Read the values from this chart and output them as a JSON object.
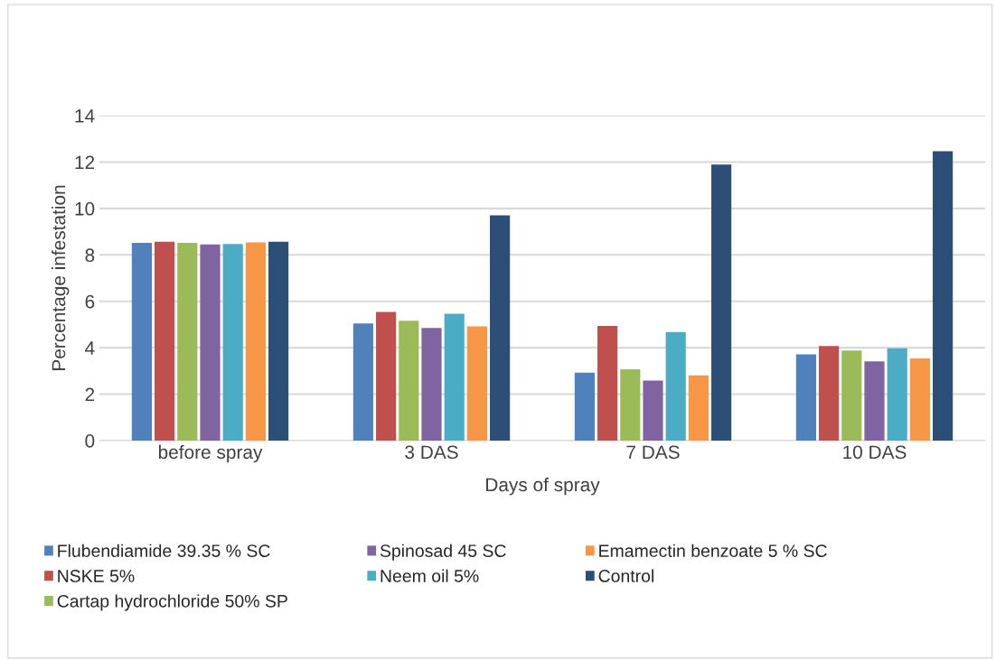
{
  "chart_data": {
    "type": "bar",
    "xlabel": "Days of spray",
    "ylabel": "Percentage infestation",
    "categories": [
      "before spray",
      "3 DAS",
      "7 DAS",
      "10 DAS"
    ],
    "series": [
      {
        "name": "Flubendiamide 39.35 % SC",
        "color": "#4f81bd",
        "values": [
          8.52,
          5.05,
          2.93,
          3.71
        ]
      },
      {
        "name": "NSKE 5%",
        "color": "#c0504d",
        "values": [
          8.57,
          5.54,
          4.94,
          4.07
        ]
      },
      {
        "name": "Cartap hydrochloride 50% SP",
        "color": "#9bbb59",
        "values": [
          8.52,
          5.16,
          3.07,
          3.88
        ]
      },
      {
        "name": "Spinosad 45 SC",
        "color": "#8064a2",
        "values": [
          8.45,
          4.85,
          2.59,
          3.41
        ]
      },
      {
        "name": "Neem oil 5%",
        "color": "#4bacc6",
        "values": [
          8.47,
          5.46,
          4.68,
          3.98
        ]
      },
      {
        "name": "Emamectin benzoate 5 % SC",
        "color": "#f79646",
        "values": [
          8.54,
          4.92,
          2.81,
          3.54
        ]
      },
      {
        "name": "Control",
        "color": "#2c4f77",
        "values": [
          8.57,
          9.7,
          11.89,
          12.46
        ]
      }
    ],
    "ylim": [
      0,
      14
    ],
    "yticks": [
      0,
      2,
      4,
      6,
      8,
      10,
      12,
      14
    ],
    "grid": "y",
    "legend": "bottom"
  }
}
